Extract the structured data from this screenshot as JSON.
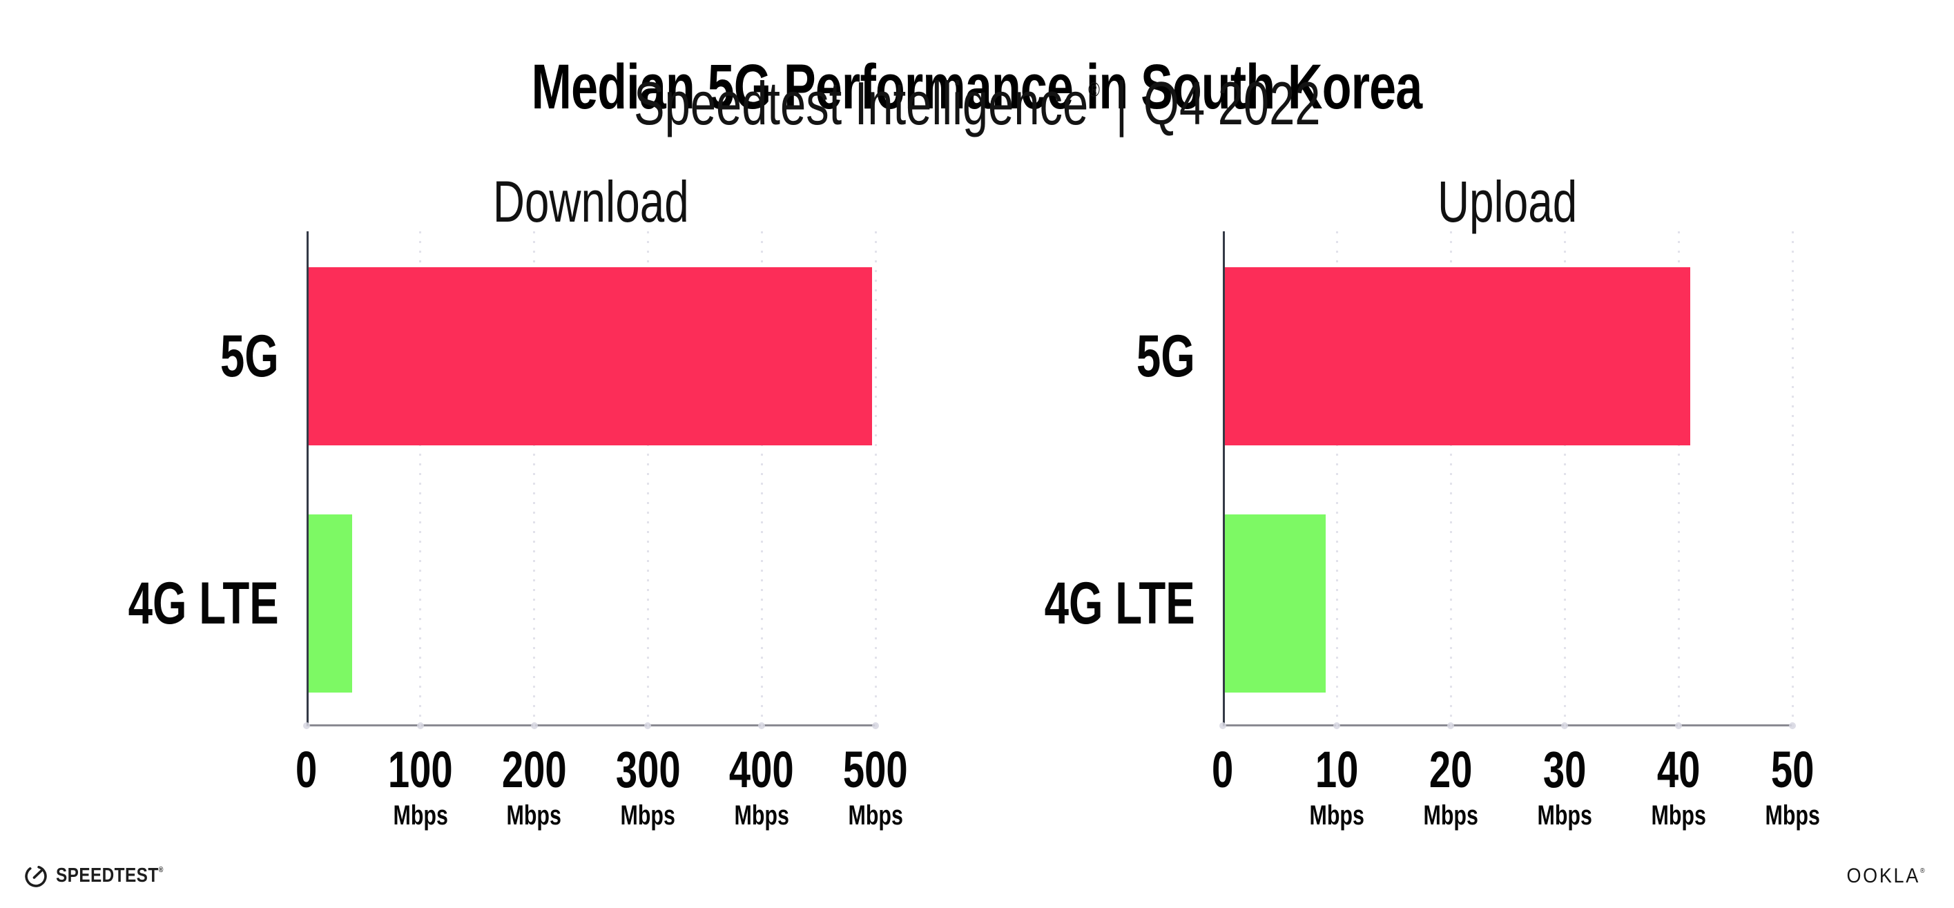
{
  "header": {
    "title": "Median 5G Performance in South Korea",
    "subtitle_brand": "Speedtest Intelligence",
    "subtitle_registered": "®",
    "subtitle_separator": "|",
    "subtitle_period": "Q4 2022"
  },
  "chart_data": [
    {
      "type": "bar",
      "orientation": "horizontal",
      "title": "Download",
      "categories": [
        "5G",
        "4G LTE"
      ],
      "values": [
        497,
        40
      ],
      "unit": "Mbps",
      "xlabel": "",
      "ylabel": "",
      "xlim": [
        0,
        500
      ],
      "xticks": [
        0,
        100,
        200,
        300,
        400,
        500
      ],
      "bar_colors": [
        "#FC2D58",
        "#7DF964"
      ],
      "grid": "dotted-vertical",
      "legend": "none"
    },
    {
      "type": "bar",
      "orientation": "horizontal",
      "title": "Upload",
      "categories": [
        "5G",
        "4G LTE"
      ],
      "values": [
        41,
        9
      ],
      "unit": "Mbps",
      "xlabel": "",
      "ylabel": "",
      "xlim": [
        0,
        50
      ],
      "xticks": [
        0,
        10,
        20,
        30,
        40,
        50
      ],
      "bar_colors": [
        "#FC2D58",
        "#7DF964"
      ],
      "grid": "dotted-vertical",
      "legend": "none"
    }
  ],
  "colors": {
    "bar_5g": "#FC2D58",
    "bar_4g_lte": "#7DF964",
    "grid_dot": "#E2E2EB",
    "y_axis_line": "#343A46",
    "x_axis_line": "#8A8A92",
    "text": "#0A0A0A"
  },
  "footer": {
    "speedtest_label": "SPEEDTEST",
    "speedtest_registered": "®",
    "speedtest_icon": "speedometer-gauge-icon",
    "ookla_label": "OOKLA",
    "ookla_registered": "®"
  }
}
